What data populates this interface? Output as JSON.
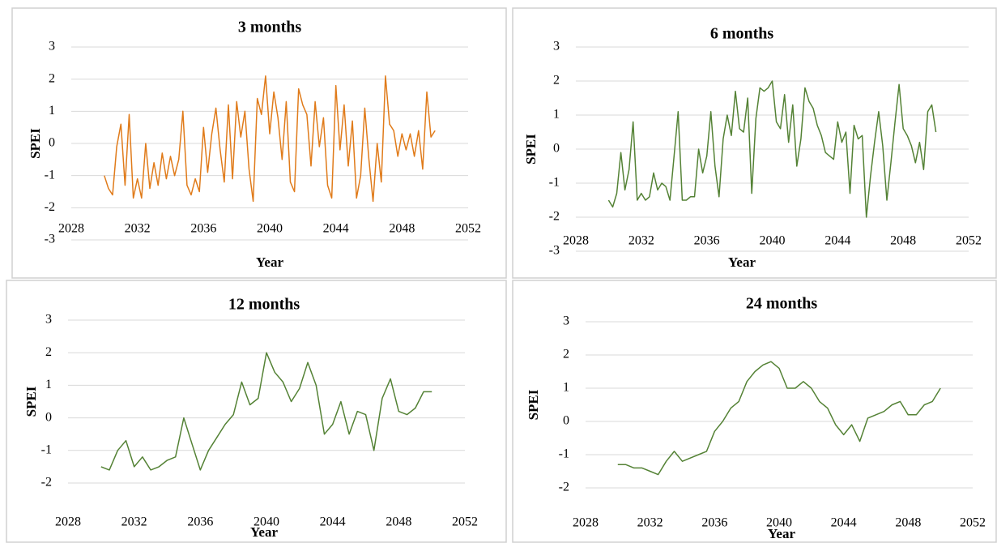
{
  "chart_data": [
    {
      "type": "line",
      "title": "3 months",
      "x_label": "Year",
      "y_label": "SPEI",
      "color": "#e07b1a",
      "x": [
        2030,
        2030.25,
        2030.5,
        2030.75,
        2031,
        2031.25,
        2031.5,
        2031.75,
        2032,
        2032.25,
        2032.5,
        2032.75,
        2033,
        2033.25,
        2033.5,
        2033.75,
        2034,
        2034.25,
        2034.5,
        2034.75,
        2035,
        2035.25,
        2035.5,
        2035.75,
        2036,
        2036.25,
        2036.5,
        2036.75,
        2037,
        2037.25,
        2037.5,
        2037.75,
        2038,
        2038.25,
        2038.5,
        2038.75,
        2039,
        2039.25,
        2039.5,
        2039.75,
        2040,
        2040.25,
        2040.5,
        2040.75,
        2041,
        2041.25,
        2041.5,
        2041.75,
        2042,
        2042.25,
        2042.5,
        2042.75,
        2043,
        2043.25,
        2043.5,
        2043.75,
        2044,
        2044.25,
        2044.5,
        2044.75,
        2045,
        2045.25,
        2045.5,
        2045.75,
        2046,
        2046.25,
        2046.5,
        2046.75,
        2047,
        2047.25,
        2047.5,
        2047.75,
        2048,
        2048.25,
        2048.5,
        2048.75,
        2049,
        2049.25,
        2049.5,
        2049.75,
        2050
      ],
      "values": [
        -1.0,
        -1.4,
        -1.6,
        -0.1,
        0.6,
        -1.3,
        0.9,
        -1.7,
        -1.1,
        -1.7,
        0.0,
        -1.4,
        -0.6,
        -1.3,
        -0.3,
        -1.1,
        -0.4,
        -1.0,
        -0.5,
        1.0,
        -1.3,
        -1.6,
        -1.1,
        -1.5,
        0.5,
        -0.9,
        0.3,
        1.1,
        -0.2,
        -1.2,
        1.2,
        -1.1,
        1.3,
        0.2,
        1.0,
        -0.8,
        -1.8,
        1.4,
        0.9,
        2.1,
        0.3,
        1.6,
        0.8,
        -0.5,
        1.3,
        -1.2,
        -1.5,
        1.7,
        1.2,
        0.9,
        -0.7,
        1.3,
        -0.1,
        0.8,
        -1.3,
        -1.7,
        1.8,
        -0.2,
        1.2,
        -0.7,
        0.7,
        -1.7,
        -1.0,
        1.1,
        -0.5,
        -1.8,
        0.0,
        -1.2,
        2.1,
        0.6,
        0.4,
        -0.4,
        0.3,
        -0.2,
        0.3,
        -0.4,
        0.4,
        -0.8,
        1.6,
        0.2,
        0.4
      ],
      "xlim": [
        2028,
        2052
      ],
      "xticks": [
        2028,
        2032,
        2036,
        2040,
        2044,
        2048,
        2052
      ],
      "ylim": [
        -3,
        3
      ],
      "yticks": [
        -3,
        -2,
        -1,
        0,
        1,
        2,
        3
      ],
      "grid": true
    },
    {
      "type": "line",
      "title": "6 months",
      "x_label": "Year",
      "y_label": "SPEI",
      "color": "#548235",
      "x": [
        2030,
        2030.25,
        2030.5,
        2030.75,
        2031,
        2031.25,
        2031.5,
        2031.75,
        2032,
        2032.25,
        2032.5,
        2032.75,
        2033,
        2033.25,
        2033.5,
        2033.75,
        2034,
        2034.25,
        2034.5,
        2034.75,
        2035,
        2035.25,
        2035.5,
        2035.75,
        2036,
        2036.25,
        2036.5,
        2036.75,
        2037,
        2037.25,
        2037.5,
        2037.75,
        2038,
        2038.25,
        2038.5,
        2038.75,
        2039,
        2039.25,
        2039.5,
        2039.75,
        2040,
        2040.25,
        2040.5,
        2040.75,
        2041,
        2041.25,
        2041.5,
        2041.75,
        2042,
        2042.25,
        2042.5,
        2042.75,
        2043,
        2043.25,
        2043.5,
        2043.75,
        2044,
        2044.25,
        2044.5,
        2044.75,
        2045,
        2045.25,
        2045.5,
        2045.75,
        2046,
        2046.25,
        2046.5,
        2046.75,
        2047,
        2047.25,
        2047.5,
        2047.75,
        2048,
        2048.25,
        2048.5,
        2048.75,
        2049,
        2049.25,
        2049.5,
        2049.75,
        2050
      ],
      "values": [
        -1.5,
        -1.7,
        -1.3,
        -0.1,
        -1.2,
        -0.6,
        0.8,
        -1.5,
        -1.3,
        -1.5,
        -1.4,
        -0.7,
        -1.2,
        -1.0,
        -1.1,
        -1.5,
        -0.2,
        1.1,
        -1.5,
        -1.5,
        -1.4,
        -1.4,
        0.0,
        -0.7,
        -0.2,
        1.1,
        -0.5,
        -1.4,
        0.3,
        1.0,
        0.4,
        1.7,
        0.6,
        0.5,
        1.5,
        -1.3,
        0.9,
        1.8,
        1.7,
        1.8,
        2.0,
        0.8,
        0.6,
        1.6,
        0.2,
        1.3,
        -0.5,
        0.3,
        1.8,
        1.4,
        1.2,
        0.7,
        0.4,
        -0.1,
        -0.2,
        -0.3,
        0.8,
        0.2,
        0.5,
        -1.3,
        0.7,
        0.3,
        0.4,
        -2.0,
        -0.8,
        0.2,
        1.1,
        0.1,
        -1.5,
        -0.4,
        0.8,
        1.9,
        0.6,
        0.4,
        0.1,
        -0.4,
        0.2,
        -0.6,
        1.1,
        1.3,
        0.5
      ],
      "xlim": [
        2028,
        2052
      ],
      "xticks": [
        2028,
        2032,
        2036,
        2040,
        2044,
        2048,
        2052
      ],
      "ylim": [
        -3,
        3
      ],
      "yticks": [
        -3,
        -2,
        -1,
        0,
        1,
        2,
        3
      ],
      "grid": true
    },
    {
      "type": "line",
      "title": "12 months",
      "x_label": "Year",
      "y_label": "SPEI",
      "color": "#548235",
      "x": [
        2030,
        2030.5,
        2031,
        2031.5,
        2032,
        2032.5,
        2033,
        2033.5,
        2034,
        2034.5,
        2035,
        2035.5,
        2036,
        2036.5,
        2037,
        2037.5,
        2038,
        2038.5,
        2039,
        2039.5,
        2040,
        2040.5,
        2041,
        2041.5,
        2042,
        2042.5,
        2043,
        2043.5,
        2044,
        2044.5,
        2045,
        2045.5,
        2046,
        2046.5,
        2047,
        2047.5,
        2048,
        2048.5,
        2049,
        2049.5,
        2050
      ],
      "values": [
        -1.5,
        -1.6,
        -1.0,
        -0.7,
        -1.5,
        -1.2,
        -1.6,
        -1.5,
        -1.3,
        -1.2,
        0.0,
        -0.8,
        -1.6,
        -1.0,
        -0.6,
        -0.2,
        0.1,
        1.1,
        0.4,
        0.6,
        2.0,
        1.4,
        1.1,
        0.5,
        0.9,
        1.7,
        1.0,
        -0.5,
        -0.2,
        0.5,
        -0.5,
        0.2,
        0.1,
        -1.0,
        0.6,
        1.2,
        0.2,
        0.1,
        0.3,
        0.8,
        0.8
      ],
      "xlim": [
        2028,
        2052
      ],
      "xticks": [
        2028,
        2032,
        2036,
        2040,
        2044,
        2048,
        2052
      ],
      "ylim": [
        -2,
        3
      ],
      "yticks": [
        -2,
        -1,
        0,
        1,
        2,
        3
      ],
      "grid": true
    },
    {
      "type": "line",
      "title": "24 months",
      "x_label": "Year",
      "y_label": "SPEI",
      "color": "#548235",
      "x": [
        2030,
        2030.5,
        2031,
        2031.5,
        2032,
        2032.5,
        2033,
        2033.5,
        2034,
        2034.5,
        2035,
        2035.5,
        2036,
        2036.5,
        2037,
        2037.5,
        2038,
        2038.5,
        2039,
        2039.5,
        2040,
        2040.5,
        2041,
        2041.5,
        2042,
        2042.5,
        2043,
        2043.5,
        2044,
        2044.5,
        2045,
        2045.5,
        2046,
        2046.5,
        2047,
        2047.5,
        2048,
        2048.5,
        2049,
        2049.5,
        2050
      ],
      "values": [
        -1.3,
        -1.3,
        -1.4,
        -1.4,
        -1.5,
        -1.6,
        -1.2,
        -0.9,
        -1.2,
        -1.1,
        -1.0,
        -0.9,
        -0.3,
        0.0,
        0.4,
        0.6,
        1.2,
        1.5,
        1.7,
        1.8,
        1.6,
        1.0,
        1.0,
        1.2,
        1.0,
        0.6,
        0.4,
        -0.1,
        -0.4,
        -0.1,
        -0.6,
        0.1,
        0.2,
        0.3,
        0.5,
        0.6,
        0.2,
        0.2,
        0.5,
        0.6,
        1.0
      ],
      "xlim": [
        2028,
        2052
      ],
      "xticks": [
        2028,
        2032,
        2036,
        2040,
        2044,
        2048,
        2052
      ],
      "ylim": [
        -2,
        3
      ],
      "yticks": [
        -2,
        -1,
        0,
        1,
        2,
        3
      ],
      "grid": true
    }
  ]
}
